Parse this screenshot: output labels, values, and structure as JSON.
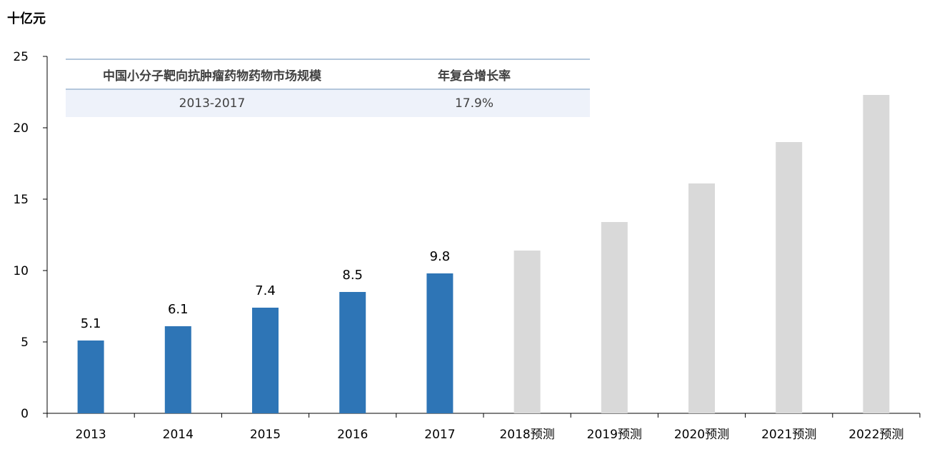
{
  "chart_data": {
    "type": "bar",
    "ylabel": "十亿元",
    "ylim": [
      0,
      25
    ],
    "yticks": [
      0,
      5,
      10,
      15,
      20,
      25
    ],
    "categories": [
      "2013",
      "2014",
      "2015",
      "2016",
      "2017",
      "2018预测",
      "2019预测",
      "2020预测",
      "2021预测",
      "2022预测"
    ],
    "values": [
      5.1,
      6.1,
      7.4,
      8.5,
      9.8,
      11.4,
      13.4,
      16.1,
      19.0,
      22.3
    ],
    "data_labels": [
      "5.1",
      "6.1",
      "7.4",
      "8.5",
      "9.8",
      "",
      "",
      "",
      "",
      ""
    ],
    "series_kind": [
      "actual",
      "actual",
      "actual",
      "actual",
      "actual",
      "forecast",
      "forecast",
      "forecast",
      "forecast",
      "forecast"
    ],
    "colors": {
      "actual": "#2e75b6",
      "forecast": "#d9d9d9"
    },
    "grid": false,
    "legend": "none"
  },
  "table": {
    "headers": [
      "中国小分子靶向抗肿瘤药物药物市场规模",
      "年复合增长率"
    ],
    "row": [
      "2013-2017",
      "17.9%"
    ]
  }
}
